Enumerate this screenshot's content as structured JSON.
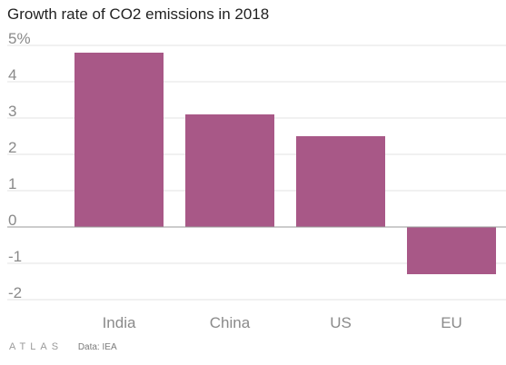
{
  "colors": {
    "bar": "#a85887",
    "grid": "#e3e3e3",
    "zero_line": "#9a9a9a",
    "tick_text": "#8a8a8a",
    "category_text": "#8a8a8a"
  },
  "footer": {
    "logo": "ATLAS",
    "source": "Data: IEA"
  },
  "chart_data": {
    "type": "bar",
    "title": "Growth rate of CO2 emissions in 2018",
    "categories": [
      "India",
      "China",
      "US",
      "EU"
    ],
    "values": [
      4.8,
      3.1,
      2.5,
      -1.3
    ],
    "ylim": [
      -2,
      5
    ],
    "yticks": [
      5,
      4,
      3,
      2,
      1,
      0,
      -1,
      -2
    ],
    "ytick_labels": [
      "5%",
      "4",
      "3",
      "2",
      "1",
      "0",
      "-1",
      "-2"
    ],
    "grid": true,
    "legend": "none"
  }
}
